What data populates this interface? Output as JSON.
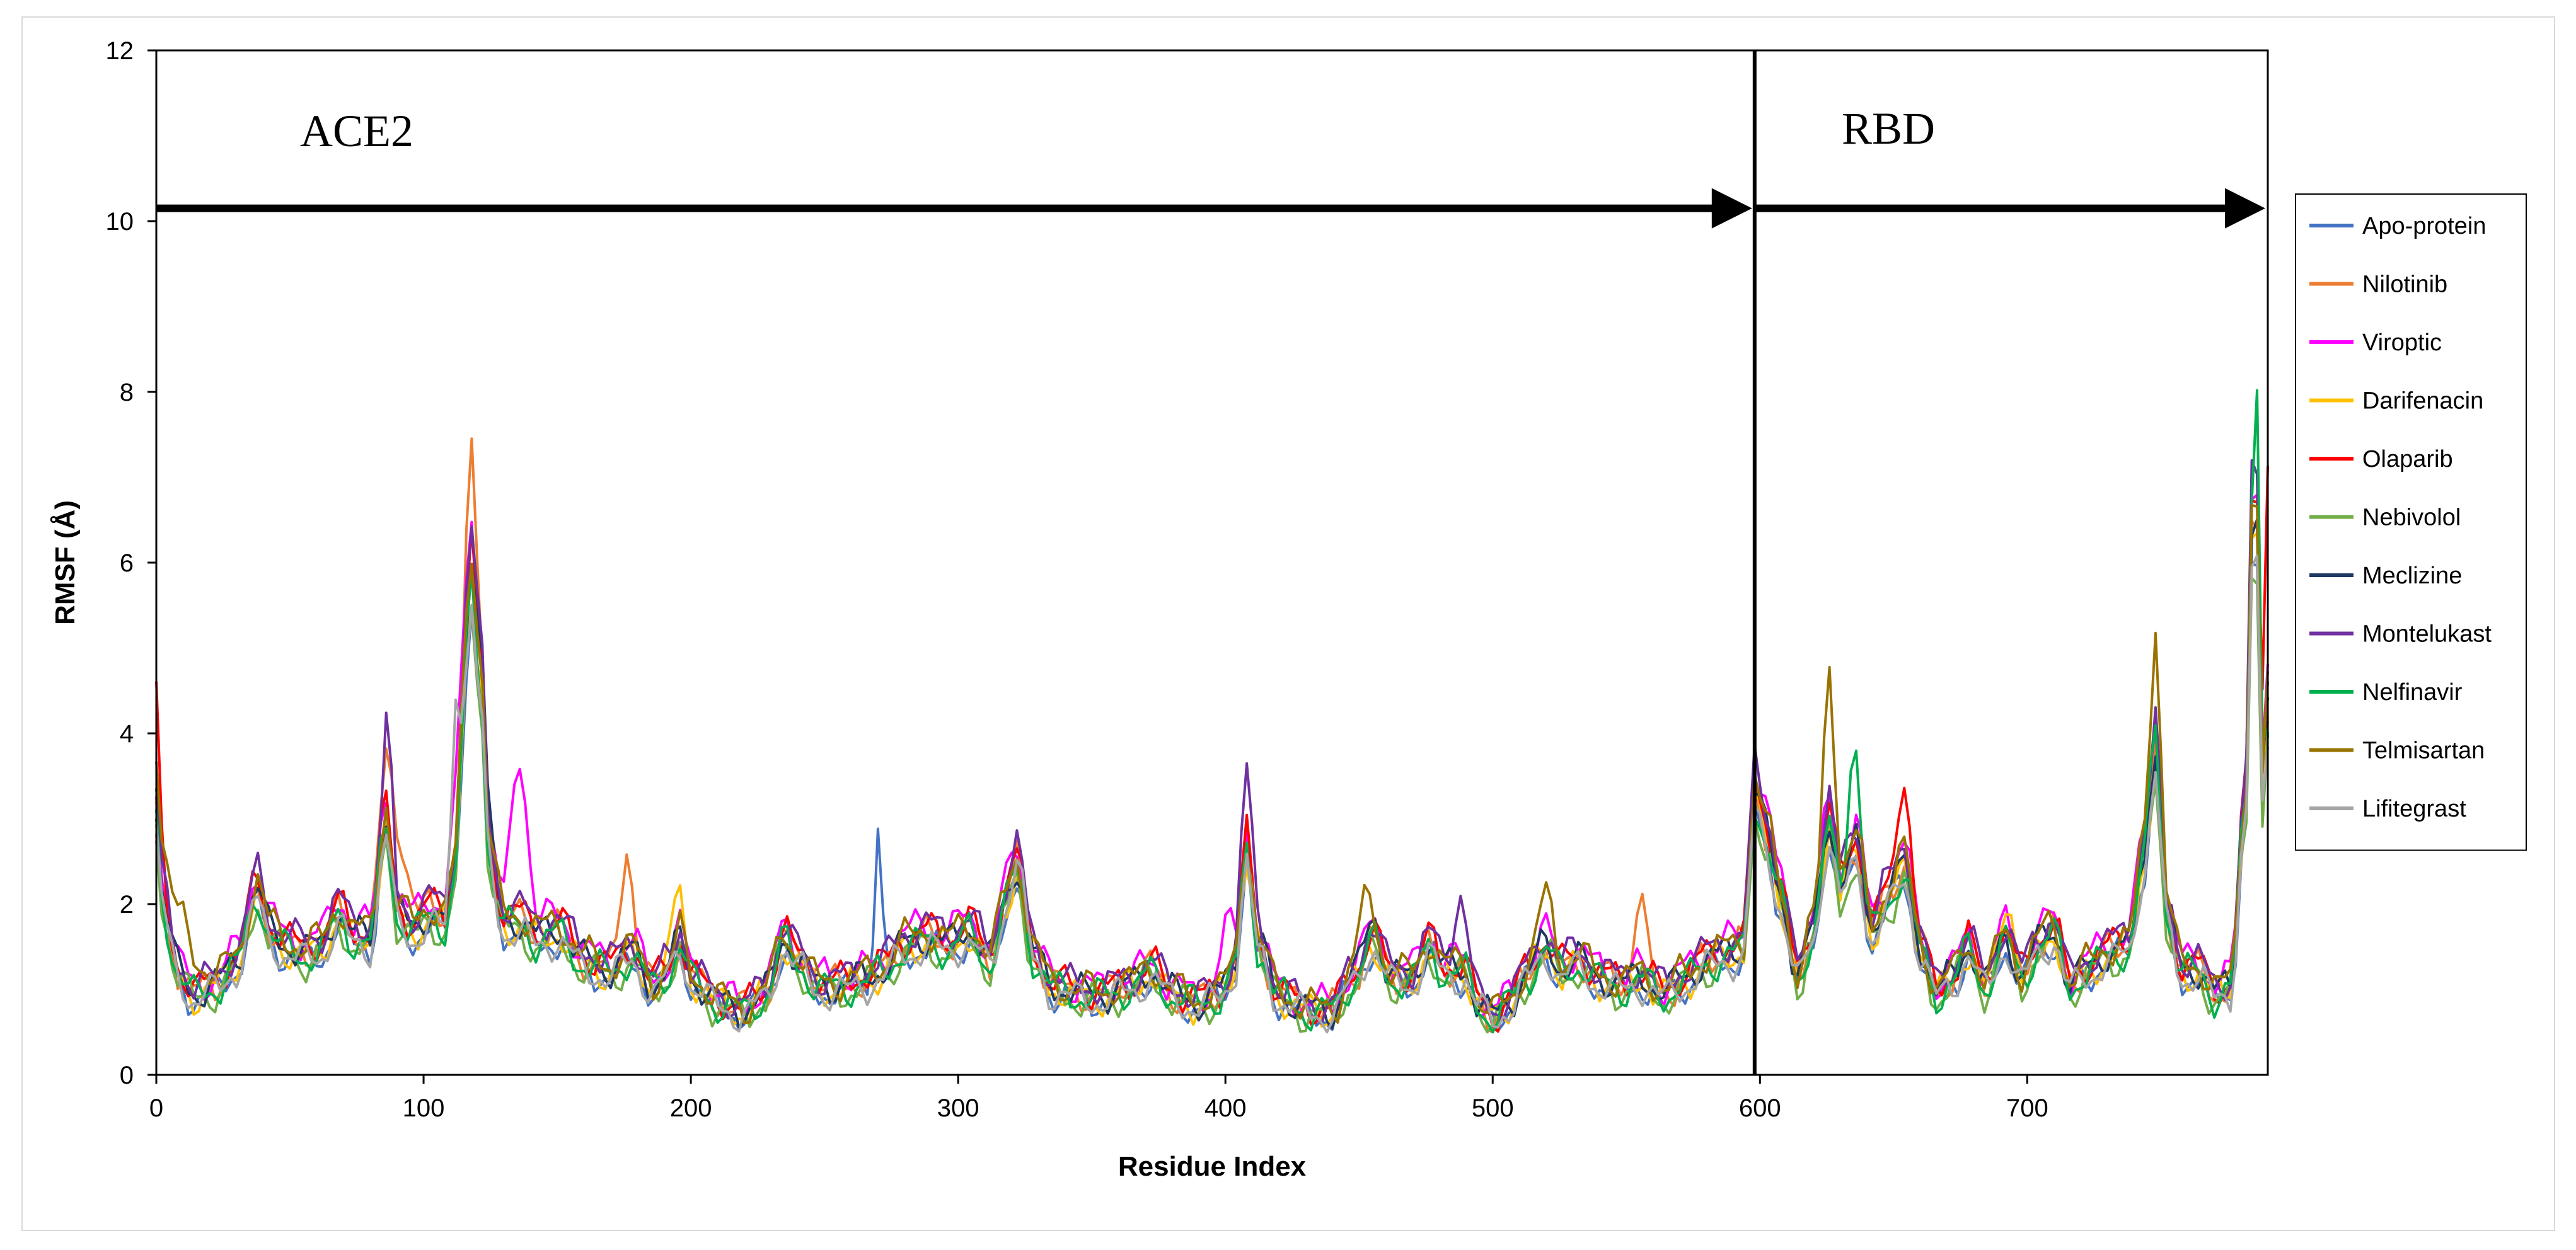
{
  "chart_data": {
    "type": "line",
    "xlabel": "Residue Index",
    "ylabel": "RMSF (Å)",
    "xlim": [
      0,
      790
    ],
    "ylim": [
      0,
      12
    ],
    "xticks": [
      0,
      100,
      200,
      300,
      400,
      500,
      600,
      700
    ],
    "yticks": [
      0,
      2,
      4,
      6,
      8,
      10,
      12
    ],
    "grid": false,
    "legend_position": "right",
    "regions": [
      {
        "label": "ACE2",
        "x_start": 0,
        "x_end": 598
      },
      {
        "label": "RBD",
        "x_start": 598,
        "x_end": 790
      }
    ],
    "boundary_x": 598,
    "arrow_y": 10.15,
    "series": [
      {
        "name": "Apo-protein",
        "color": "#4472C4"
      },
      {
        "name": "Nilotinib",
        "color": "#ED7D31"
      },
      {
        "name": "Viroptic",
        "color": "#FF00FF"
      },
      {
        "name": "Darifenacin",
        "color": "#FFC000"
      },
      {
        "name": "Olaparib",
        "color": "#FF0000"
      },
      {
        "name": "Nebivolol",
        "color": "#70AD47"
      },
      {
        "name": "Meclizine",
        "color": "#1F3864"
      },
      {
        "name": "Montelukast",
        "color": "#7030A0"
      },
      {
        "name": "Nelfinavir",
        "color": "#00B050"
      },
      {
        "name": "Telmisartan",
        "color": "#997300"
      },
      {
        "name": "Lifitegrast",
        "color": "#A5A5A5"
      }
    ],
    "profile": [
      [
        0,
        3.2
      ],
      [
        3,
        2.0
      ],
      [
        8,
        1.3
      ],
      [
        14,
        1.0
      ],
      [
        22,
        1.1
      ],
      [
        30,
        1.4
      ],
      [
        38,
        2.3
      ],
      [
        42,
        1.8
      ],
      [
        48,
        1.6
      ],
      [
        55,
        1.5
      ],
      [
        62,
        1.6
      ],
      [
        68,
        2.0
      ],
      [
        74,
        1.7
      ],
      [
        80,
        1.7
      ],
      [
        86,
        3.2
      ],
      [
        90,
        2.0
      ],
      [
        96,
        1.8
      ],
      [
        102,
        2.0
      ],
      [
        108,
        1.9
      ],
      [
        112,
        2.6
      ],
      [
        116,
        5.5
      ],
      [
        118,
        6.2
      ],
      [
        121,
        5.0
      ],
      [
        125,
        2.6
      ],
      [
        130,
        1.9
      ],
      [
        136,
        1.9
      ],
      [
        142,
        1.7
      ],
      [
        150,
        1.8
      ],
      [
        160,
        1.4
      ],
      [
        170,
        1.3
      ],
      [
        178,
        1.5
      ],
      [
        186,
        1.1
      ],
      [
        192,
        1.3
      ],
      [
        196,
        1.7
      ],
      [
        200,
        1.2
      ],
      [
        210,
        0.9
      ],
      [
        220,
        0.8
      ],
      [
        228,
        1.0
      ],
      [
        235,
        1.7
      ],
      [
        240,
        1.4
      ],
      [
        248,
        1.1
      ],
      [
        258,
        1.1
      ],
      [
        266,
        1.2
      ],
      [
        272,
        1.3
      ],
      [
        280,
        1.6
      ],
      [
        288,
        1.7
      ],
      [
        296,
        1.6
      ],
      [
        304,
        1.8
      ],
      [
        312,
        1.4
      ],
      [
        318,
        2.2
      ],
      [
        322,
        2.6
      ],
      [
        328,
        1.5
      ],
      [
        335,
        1.1
      ],
      [
        345,
        1.0
      ],
      [
        355,
        1.0
      ],
      [
        365,
        1.1
      ],
      [
        372,
        1.3
      ],
      [
        380,
        1.0
      ],
      [
        390,
        0.9
      ],
      [
        398,
        1.0
      ],
      [
        403,
        1.3
      ],
      [
        408,
        2.8
      ],
      [
        412,
        1.6
      ],
      [
        420,
        1.0
      ],
      [
        430,
        0.8
      ],
      [
        440,
        0.8
      ],
      [
        448,
        1.2
      ],
      [
        455,
        1.7
      ],
      [
        462,
        1.2
      ],
      [
        470,
        1.2
      ],
      [
        476,
        1.6
      ],
      [
        482,
        1.3
      ],
      [
        490,
        1.3
      ],
      [
        494,
        0.9
      ],
      [
        500,
        0.7
      ],
      [
        506,
        0.9
      ],
      [
        512,
        1.2
      ],
      [
        520,
        1.6
      ],
      [
        526,
        1.3
      ],
      [
        532,
        1.4
      ],
      [
        540,
        1.2
      ],
      [
        548,
        1.1
      ],
      [
        556,
        1.2
      ],
      [
        564,
        1.0
      ],
      [
        572,
        1.2
      ],
      [
        580,
        1.4
      ],
      [
        588,
        1.5
      ],
      [
        594,
        1.6
      ],
      [
        598,
        3.5
      ],
      [
        602,
        3.0
      ],
      [
        608,
        2.2
      ],
      [
        614,
        1.2
      ],
      [
        620,
        1.8
      ],
      [
        626,
        3.2
      ],
      [
        630,
        2.3
      ],
      [
        636,
        2.8
      ],
      [
        642,
        1.8
      ],
      [
        648,
        2.2
      ],
      [
        654,
        2.6
      ],
      [
        660,
        1.6
      ],
      [
        666,
        1.0
      ],
      [
        672,
        1.2
      ],
      [
        678,
        1.6
      ],
      [
        684,
        1.1
      ],
      [
        692,
        1.7
      ],
      [
        698,
        1.2
      ],
      [
        704,
        1.6
      ],
      [
        710,
        1.8
      ],
      [
        716,
        1.1
      ],
      [
        722,
        1.3
      ],
      [
        730,
        1.5
      ],
      [
        738,
        1.6
      ],
      [
        744,
        2.8
      ],
      [
        748,
        4.0
      ],
      [
        752,
        2.0
      ],
      [
        758,
        1.3
      ],
      [
        764,
        1.3
      ],
      [
        770,
        1.0
      ],
      [
        776,
        1.1
      ],
      [
        782,
        3.5
      ],
      [
        785,
        7.8
      ],
      [
        788,
        3.5
      ],
      [
        790,
        4.5
      ]
    ]
  }
}
